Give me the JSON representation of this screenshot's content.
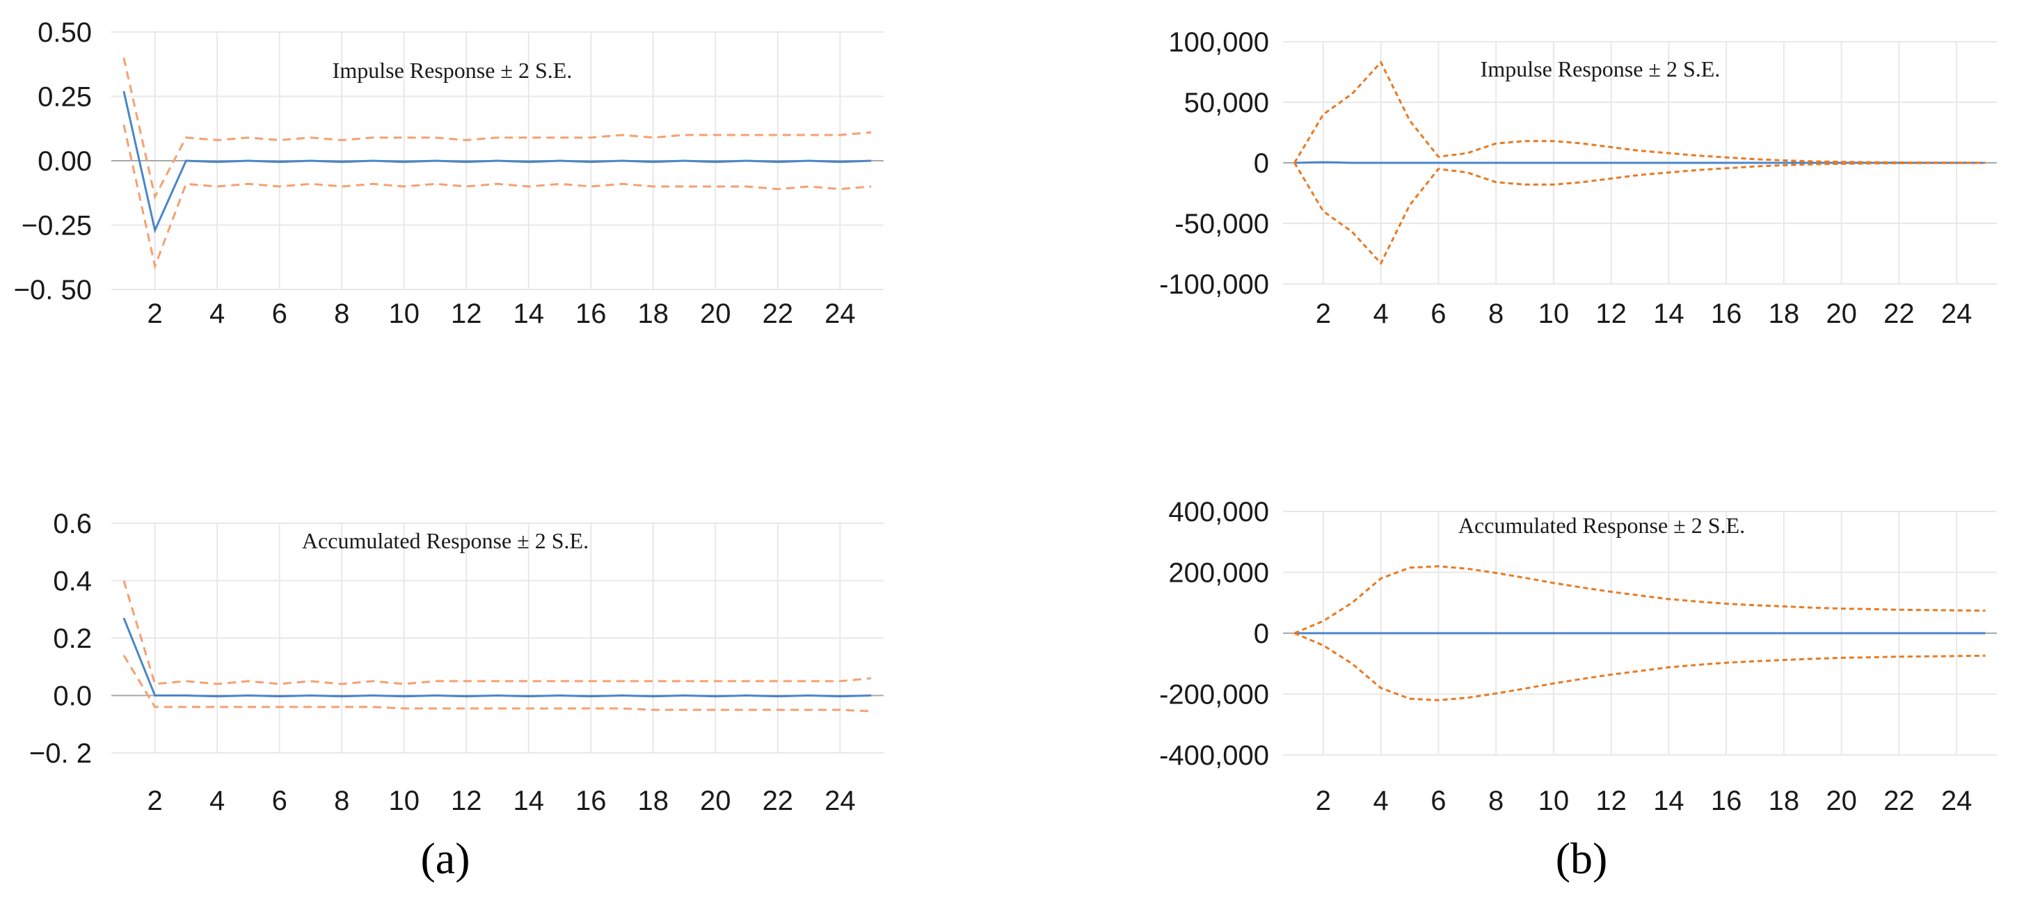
{
  "colors": {
    "response": "#4a86c8",
    "band_a": "#f5a070",
    "band_b": "#e87a22",
    "grid": "#e8e8e8",
    "zero": "#a8a8a8"
  },
  "panel_labels": [
    "(a)",
    "(b)"
  ],
  "chart_data": [
    {
      "type": "line",
      "panel": "a",
      "title": "Impulse Response ± 2 S.E.",
      "x": [
        1,
        2,
        3,
        4,
        5,
        6,
        7,
        8,
        9,
        10,
        11,
        12,
        13,
        14,
        15,
        16,
        17,
        18,
        19,
        20,
        21,
        22,
        23,
        24,
        25
      ],
      "xticks": [
        2,
        4,
        6,
        8,
        10,
        12,
        14,
        16,
        18,
        20,
        22,
        24
      ],
      "xtick_labels": [
        "2",
        "4",
        "6",
        "8",
        "10",
        "12",
        "14",
        "16",
        "18",
        "20",
        "22",
        "24"
      ],
      "xlim": [
        0.6,
        25.4
      ],
      "ylim": [
        -0.5,
        0.5
      ],
      "yticks": [
        0.5,
        0.25,
        0,
        -0.25,
        -0.5
      ],
      "ytick_labels": [
        "0.50",
        "0.25",
        "0.00",
        "−0.25",
        "−0. 50"
      ],
      "grid": true,
      "series": [
        {
          "role": "response",
          "style": "solid",
          "values": [
            0.27,
            -0.27,
            0,
            -0.005,
            0,
            -0.005,
            0,
            -0.005,
            0,
            -0.005,
            0,
            -0.005,
            0,
            -0.005,
            0,
            -0.005,
            0,
            -0.005,
            0,
            -0.005,
            0,
            -0.005,
            0,
            -0.005,
            0
          ]
        },
        {
          "role": "upper",
          "style": "dashed",
          "values": [
            0.4,
            -0.14,
            0.09,
            0.08,
            0.09,
            0.08,
            0.09,
            0.08,
            0.09,
            0.09,
            0.09,
            0.08,
            0.09,
            0.09,
            0.09,
            0.09,
            0.1,
            0.09,
            0.1,
            0.1,
            0.1,
            0.1,
            0.1,
            0.1,
            0.11
          ]
        },
        {
          "role": "lower",
          "style": "dashed",
          "values": [
            0.14,
            -0.41,
            -0.09,
            -0.1,
            -0.09,
            -0.1,
            -0.09,
            -0.1,
            -0.09,
            -0.1,
            -0.09,
            -0.1,
            -0.09,
            -0.1,
            -0.09,
            -0.1,
            -0.09,
            -0.1,
            -0.1,
            -0.1,
            -0.1,
            -0.11,
            -0.1,
            -0.11,
            -0.1
          ]
        }
      ]
    },
    {
      "type": "line",
      "panel": "a",
      "title": "Accumulated Response ± 2 S.E.",
      "x": [
        1,
        2,
        3,
        4,
        5,
        6,
        7,
        8,
        9,
        10,
        11,
        12,
        13,
        14,
        15,
        16,
        17,
        18,
        19,
        20,
        21,
        22,
        23,
        24,
        25
      ],
      "xticks": [
        2,
        4,
        6,
        8,
        10,
        12,
        14,
        16,
        18,
        20,
        22,
        24
      ],
      "xtick_labels": [
        "2",
        "4",
        "6",
        "8",
        "10",
        "12",
        "14",
        "16",
        "18",
        "20",
        "22",
        "24"
      ],
      "xlim": [
        0.6,
        25.4
      ],
      "ylim": [
        -0.2,
        0.6
      ],
      "yticks": [
        0.6,
        0.4,
        0.2,
        0,
        -0.2
      ],
      "ytick_labels": [
        "0.6",
        "0.4",
        "0.2",
        "0.0",
        "−0. 2"
      ],
      "grid": true,
      "series": [
        {
          "role": "response",
          "style": "solid",
          "values": [
            0.27,
            0,
            0,
            -0.003,
            0,
            -0.003,
            0,
            -0.003,
            0,
            -0.003,
            0,
            -0.003,
            0,
            -0.003,
            0,
            -0.003,
            0,
            -0.003,
            0,
            -0.003,
            0,
            -0.003,
            0,
            -0.003,
            0
          ]
        },
        {
          "role": "upper",
          "style": "dashed",
          "values": [
            0.4,
            0.04,
            0.05,
            0.04,
            0.05,
            0.04,
            0.05,
            0.04,
            0.05,
            0.04,
            0.05,
            0.05,
            0.05,
            0.05,
            0.05,
            0.05,
            0.05,
            0.05,
            0.05,
            0.05,
            0.05,
            0.05,
            0.05,
            0.05,
            0.06
          ]
        },
        {
          "role": "lower",
          "style": "dashed",
          "values": [
            0.14,
            -0.04,
            -0.04,
            -0.04,
            -0.04,
            -0.04,
            -0.04,
            -0.04,
            -0.04,
            -0.045,
            -0.045,
            -0.045,
            -0.045,
            -0.045,
            -0.045,
            -0.045,
            -0.045,
            -0.05,
            -0.05,
            -0.05,
            -0.05,
            -0.05,
            -0.05,
            -0.05,
            -0.055
          ]
        }
      ]
    },
    {
      "type": "line",
      "panel": "b",
      "title": "Impulse Response ± 2 S.E.",
      "x": [
        1,
        2,
        3,
        4,
        5,
        6,
        7,
        8,
        9,
        10,
        11,
        12,
        13,
        14,
        15,
        16,
        17,
        18,
        19,
        20,
        21,
        22,
        23,
        24,
        25
      ],
      "xticks": [
        2,
        4,
        6,
        8,
        10,
        12,
        14,
        16,
        18,
        20,
        22,
        24
      ],
      "xtick_labels": [
        "2",
        "4",
        "6",
        "8",
        "10",
        "12",
        "14",
        "16",
        "18",
        "20",
        "22",
        "24"
      ],
      "xlim": [
        0.6,
        25.4
      ],
      "ylim": [
        -100000,
        100000
      ],
      "yticks": [
        100000,
        50000,
        0,
        -50000,
        -100000
      ],
      "ytick_labels": [
        "100,000",
        "50,000",
        "0",
        "-50,000",
        "-100,000"
      ],
      "grid": true,
      "series": [
        {
          "role": "response",
          "style": "solid",
          "values": [
            0,
            500,
            0,
            0,
            0,
            0,
            0,
            0,
            0,
            0,
            0,
            0,
            0,
            0,
            0,
            0,
            0,
            0,
            0,
            0,
            0,
            0,
            0,
            0,
            0
          ]
        },
        {
          "role": "upper",
          "style": "dashed",
          "values": [
            0,
            40000,
            57000,
            83000,
            35000,
            5000,
            8000,
            16000,
            18000,
            18000,
            16000,
            13000,
            10000,
            8000,
            6000,
            4500,
            3000,
            2000,
            1200,
            800,
            500,
            300,
            200,
            100,
            0
          ]
        },
        {
          "role": "lower",
          "style": "dashed",
          "values": [
            0,
            -40000,
            -57000,
            -83000,
            -35000,
            -5000,
            -8000,
            -16000,
            -18000,
            -18000,
            -16000,
            -13000,
            -10000,
            -8000,
            -6000,
            -4500,
            -3000,
            -2000,
            -1200,
            -800,
            -500,
            -300,
            -200,
            -100,
            0
          ]
        }
      ]
    },
    {
      "type": "line",
      "panel": "b",
      "title": "Accumulated Response ± 2 S.E.",
      "x": [
        1,
        2,
        3,
        4,
        5,
        6,
        7,
        8,
        9,
        10,
        11,
        12,
        13,
        14,
        15,
        16,
        17,
        18,
        19,
        20,
        21,
        22,
        23,
        24,
        25
      ],
      "xticks": [
        2,
        4,
        6,
        8,
        10,
        12,
        14,
        16,
        18,
        20,
        22,
        24
      ],
      "xtick_labels": [
        "2",
        "4",
        "6",
        "8",
        "10",
        "12",
        "14",
        "16",
        "18",
        "20",
        "22",
        "24"
      ],
      "xlim": [
        0.6,
        25.4
      ],
      "ylim": [
        -400000,
        400000
      ],
      "yticks": [
        400000,
        200000,
        0,
        -200000,
        -400000
      ],
      "ytick_labels": [
        "400,000",
        "200,000",
        "0",
        "-200,000",
        "-400,000"
      ],
      "grid": true,
      "series": [
        {
          "role": "response",
          "style": "solid",
          "values": [
            0,
            0,
            0,
            0,
            0,
            0,
            0,
            0,
            0,
            0,
            0,
            0,
            0,
            0,
            0,
            0,
            0,
            0,
            0,
            0,
            0,
            0,
            0,
            0,
            0
          ]
        },
        {
          "role": "upper",
          "style": "dashed",
          "values": [
            0,
            40000,
            100000,
            180000,
            215000,
            220000,
            212000,
            198000,
            182000,
            165000,
            150000,
            136000,
            124000,
            112000,
            104000,
            97000,
            92000,
            88000,
            84000,
            81000,
            79000,
            77000,
            76000,
            75000,
            74000
          ]
        },
        {
          "role": "lower",
          "style": "dashed",
          "values": [
            0,
            -40000,
            -100000,
            -180000,
            -215000,
            -220000,
            -212000,
            -198000,
            -182000,
            -165000,
            -150000,
            -136000,
            -124000,
            -112000,
            -104000,
            -97000,
            -92000,
            -88000,
            -84000,
            -81000,
            -79000,
            -77000,
            -76000,
            -75000,
            -74000
          ]
        }
      ]
    }
  ]
}
